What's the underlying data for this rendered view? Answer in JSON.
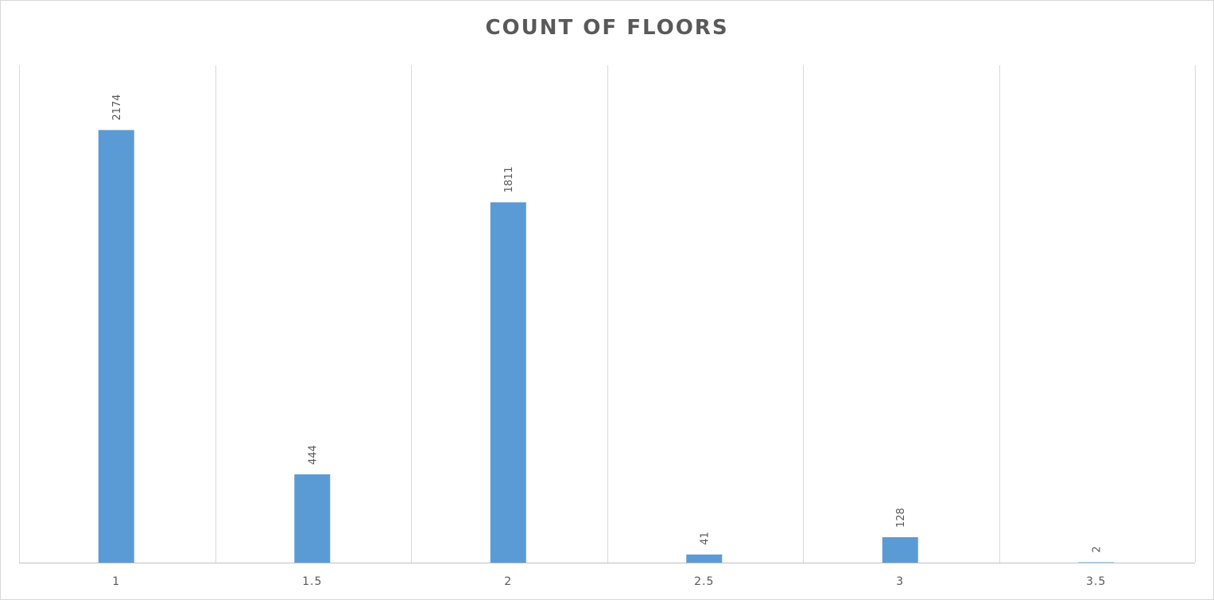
{
  "chart_data": {
    "type": "bar",
    "title": "COUNT OF FLOORS",
    "xlabel": "",
    "ylabel": "",
    "categories": [
      "1",
      "1.5",
      "2",
      "2.5",
      "3",
      "3.5"
    ],
    "values": [
      2174,
      444,
      1811,
      41,
      128,
      2
    ],
    "data_labels": [
      "2174",
      "444",
      "1811",
      "41",
      "128",
      "2"
    ],
    "ylim": [
      0,
      2500
    ],
    "grid": "vertical",
    "legend": "none",
    "bar_color": "#5b9bd5"
  }
}
